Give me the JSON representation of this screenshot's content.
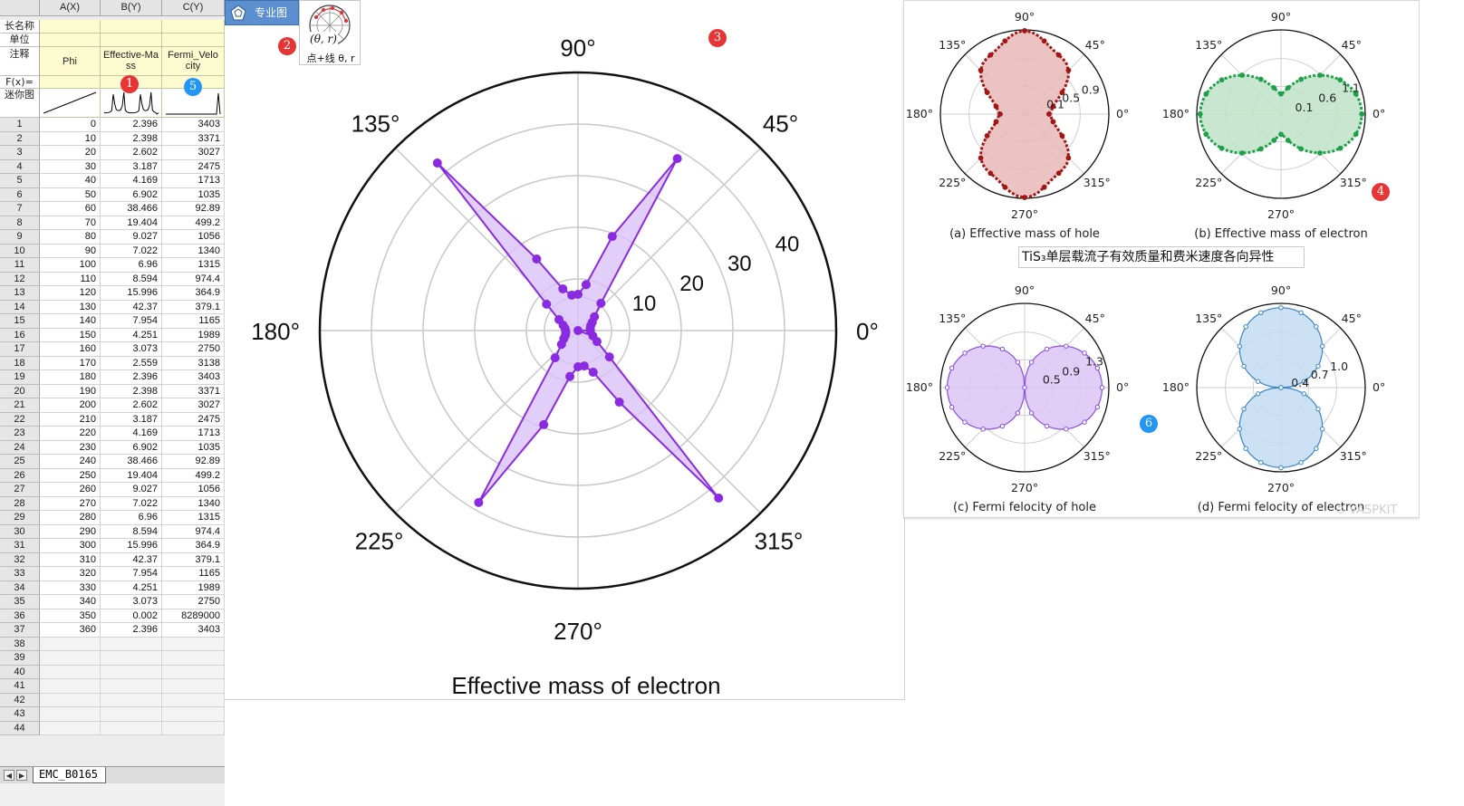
{
  "spreadsheet": {
    "col_headers": [
      "A(X)",
      "B(Y)",
      "C(Y)"
    ],
    "meta_labels": [
      "长名称",
      "单位",
      "注释",
      "F(x)=",
      "迷你图"
    ],
    "comments": [
      "Phi",
      "Effective-Ma ss",
      "Fermi_Velo city"
    ],
    "rows": [
      [
        "1",
        "0",
        "2.396",
        "3403"
      ],
      [
        "2",
        "10",
        "2.398",
        "3371"
      ],
      [
        "3",
        "20",
        "2.602",
        "3027"
      ],
      [
        "4",
        "30",
        "3.187",
        "2475"
      ],
      [
        "5",
        "40",
        "4.169",
        "1713"
      ],
      [
        "6",
        "50",
        "6.902",
        "1035"
      ],
      [
        "7",
        "60",
        "38.466",
        "92.89"
      ],
      [
        "8",
        "70",
        "19.404",
        "499.2"
      ],
      [
        "9",
        "80",
        "9.027",
        "1056"
      ],
      [
        "10",
        "90",
        "7.022",
        "1340"
      ],
      [
        "11",
        "100",
        "6.96",
        "1315"
      ],
      [
        "12",
        "110",
        "8.594",
        "974.4"
      ],
      [
        "13",
        "120",
        "15.996",
        "364.9"
      ],
      [
        "14",
        "130",
        "42.37",
        "379.1"
      ],
      [
        "15",
        "140",
        "7.954",
        "1165"
      ],
      [
        "16",
        "150",
        "4.251",
        "1989"
      ],
      [
        "17",
        "160",
        "3.073",
        "2750"
      ],
      [
        "18",
        "170",
        "2.559",
        "3138"
      ],
      [
        "19",
        "180",
        "2.396",
        "3403"
      ],
      [
        "20",
        "190",
        "2.398",
        "3371"
      ],
      [
        "21",
        "200",
        "2.602",
        "3027"
      ],
      [
        "22",
        "210",
        "3.187",
        "2475"
      ],
      [
        "23",
        "220",
        "4.169",
        "1713"
      ],
      [
        "24",
        "230",
        "6.902",
        "1035"
      ],
      [
        "25",
        "240",
        "38.466",
        "92.89"
      ],
      [
        "26",
        "250",
        "19.404",
        "499.2"
      ],
      [
        "27",
        "260",
        "9.027",
        "1056"
      ],
      [
        "28",
        "270",
        "7.022",
        "1340"
      ],
      [
        "29",
        "280",
        "6.96",
        "1315"
      ],
      [
        "30",
        "290",
        "8.594",
        "974.4"
      ],
      [
        "31",
        "300",
        "15.996",
        "364.9"
      ],
      [
        "32",
        "310",
        "42.37",
        "379.1"
      ],
      [
        "33",
        "320",
        "7.954",
        "1165"
      ],
      [
        "34",
        "330",
        "4.251",
        "1989"
      ],
      [
        "35",
        "340",
        "3.073",
        "2750"
      ],
      [
        "36",
        "350",
        "0.002",
        "8289000"
      ],
      [
        "37",
        "360",
        "2.396",
        "3403"
      ]
    ],
    "empty_rows": [
      "38",
      "39",
      "40",
      "41",
      "42",
      "43",
      "44"
    ],
    "sheet_tab": "EMC_B0165",
    "nav_prev": "◀",
    "nav_next": "▶"
  },
  "toolbar": {
    "tab_label": "专业图",
    "polar_button_label": "点+线 θ, r",
    "polar_button_glyph": "(θ, r)"
  },
  "badges": [
    "1",
    "2",
    "3",
    "4",
    "5",
    "6"
  ],
  "colors": {
    "purple": "#8a2be2",
    "purple_fill": "#d9c2f7",
    "hole_red": "#a31616",
    "electron_green": "#1fa14a",
    "fermi_blue": "#3a86c8",
    "badge_red": "#e53535",
    "badge_blue": "#2196f3"
  },
  "main_chart": {
    "title": "Effective mass of electron",
    "angle_labels": [
      "0°",
      "45°",
      "90°",
      "135°",
      "180°",
      "225°",
      "270°",
      "315°"
    ],
    "radial_labels": [
      "10",
      "20",
      "30",
      "40"
    ]
  },
  "right_panel": {
    "caption": "TiS₃单层载流子有效质量和费米速度各向异性",
    "watermark": "⊙ VASPKIT",
    "angle_labels": [
      "0°",
      "45°",
      "90°",
      "135°",
      "180°",
      "225°",
      "270°",
      "315°"
    ],
    "subplots": [
      {
        "caption": "(a) Effective mass of hole",
        "rticks": [
          "0.1",
          "0.5",
          "0.9"
        ]
      },
      {
        "caption": "(b) Effective mass of electron",
        "rticks": [
          "0.1",
          "0.6",
          "1.1"
        ]
      },
      {
        "caption": "(c) Fermi felocity of hole",
        "rticks": [
          "0.5",
          "0.9",
          "1.3"
        ]
      },
      {
        "caption": "(d) Fermi felocity of electron",
        "rticks": [
          "0.4",
          "0.7",
          "1.0"
        ]
      }
    ]
  },
  "chart_data": [
    {
      "type": "scatter",
      "subtype": "polar-line-filled",
      "title": "Effective mass of electron",
      "theta_unit": "degrees",
      "theta": [
        0,
        10,
        20,
        30,
        40,
        50,
        60,
        70,
        80,
        90,
        100,
        110,
        120,
        130,
        140,
        150,
        160,
        170,
        180,
        190,
        200,
        210,
        220,
        230,
        240,
        250,
        260,
        270,
        280,
        290,
        300,
        310,
        320,
        330,
        340,
        350,
        360
      ],
      "r": [
        2.396,
        2.398,
        2.602,
        3.187,
        4.169,
        6.902,
        38.466,
        19.404,
        9.027,
        7.022,
        6.96,
        8.594,
        15.996,
        42.37,
        7.954,
        4.251,
        3.073,
        2.559,
        2.396,
        2.398,
        2.602,
        3.187,
        4.169,
        6.902,
        38.466,
        19.404,
        9.027,
        7.022,
        6.96,
        8.594,
        15.996,
        42.37,
        7.954,
        4.251,
        3.073,
        0.002,
        2.396
      ],
      "rlim": [
        0,
        50
      ],
      "rticks": [
        10,
        20,
        30,
        40
      ],
      "angle_labels": [
        "0°",
        "45°",
        "90°",
        "135°",
        "180°",
        "225°",
        "270°",
        "315°"
      ],
      "color": "#8a2be2"
    }
  ]
}
